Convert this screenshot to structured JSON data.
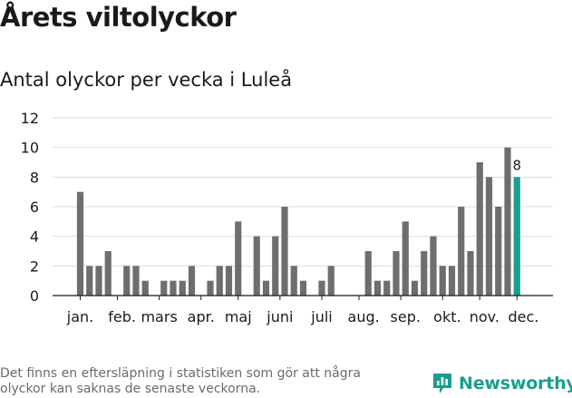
{
  "header": {
    "title": "Årets viltolyckor",
    "subtitle": "Antal olyckor per vecka i Luleå"
  },
  "footer": {
    "note": "Det finns en eftersläpning i statistiken som gör att några olyckor kan saknas de senaste veckorna.",
    "brand": "Newsworthy"
  },
  "colors": {
    "bar": "#6e6e6e",
    "highlight": "#1a9e8f",
    "grid": "#dddddd",
    "brand": "#1a9e8f"
  },
  "chart_data": {
    "type": "bar",
    "title": "Antal olyckor per vecka i Luleå",
    "xlabel": "",
    "ylabel": "",
    "ylim": [
      0,
      12
    ],
    "yticks": [
      0,
      2,
      4,
      6,
      8,
      10,
      12
    ],
    "grid": true,
    "weeks": [
      1,
      2,
      3,
      4,
      5,
      6,
      7,
      8,
      9,
      10,
      11,
      12,
      13,
      14,
      15,
      16,
      17,
      18,
      19,
      20,
      21,
      22,
      23,
      24,
      25,
      26,
      27,
      28,
      29,
      30,
      31,
      32,
      33,
      34,
      35,
      36,
      37,
      38,
      39,
      40,
      41,
      42,
      43,
      44,
      45,
      46,
      47,
      48,
      49,
      50
    ],
    "values": [
      7,
      2,
      2,
      3,
      0,
      2,
      2,
      1,
      0,
      1,
      1,
      1,
      2,
      0,
      1,
      2,
      2,
      5,
      0,
      4,
      1,
      4,
      6,
      2,
      1,
      0,
      1,
      2,
      0,
      0,
      0,
      3,
      1,
      1,
      3,
      5,
      1,
      3,
      4,
      2,
      2,
      6,
      3,
      9,
      8,
      6,
      10,
      8,
      0,
      0
    ],
    "highlight_week": 48,
    "highlight_label": "8",
    "month_labels": [
      {
        "label": "jan.",
        "week": 1
      },
      {
        "label": "feb.",
        "week": 5.5
      },
      {
        "label": "mars",
        "week": 9.5
      },
      {
        "label": "apr.",
        "week": 14
      },
      {
        "label": "maj",
        "week": 18
      },
      {
        "label": "juni",
        "week": 22.5
      },
      {
        "label": "juli",
        "week": 27
      },
      {
        "label": "aug.",
        "week": 31.5
      },
      {
        "label": "sep.",
        "week": 36
      },
      {
        "label": "okt.",
        "week": 40.5
      },
      {
        "label": "nov.",
        "week": 44.5
      },
      {
        "label": "dec.",
        "week": 48.7
      }
    ],
    "month_ticks": [
      1,
      5,
      9.5,
      14,
      18,
      22.5,
      27,
      31,
      35.5,
      40,
      44,
      48
    ]
  }
}
